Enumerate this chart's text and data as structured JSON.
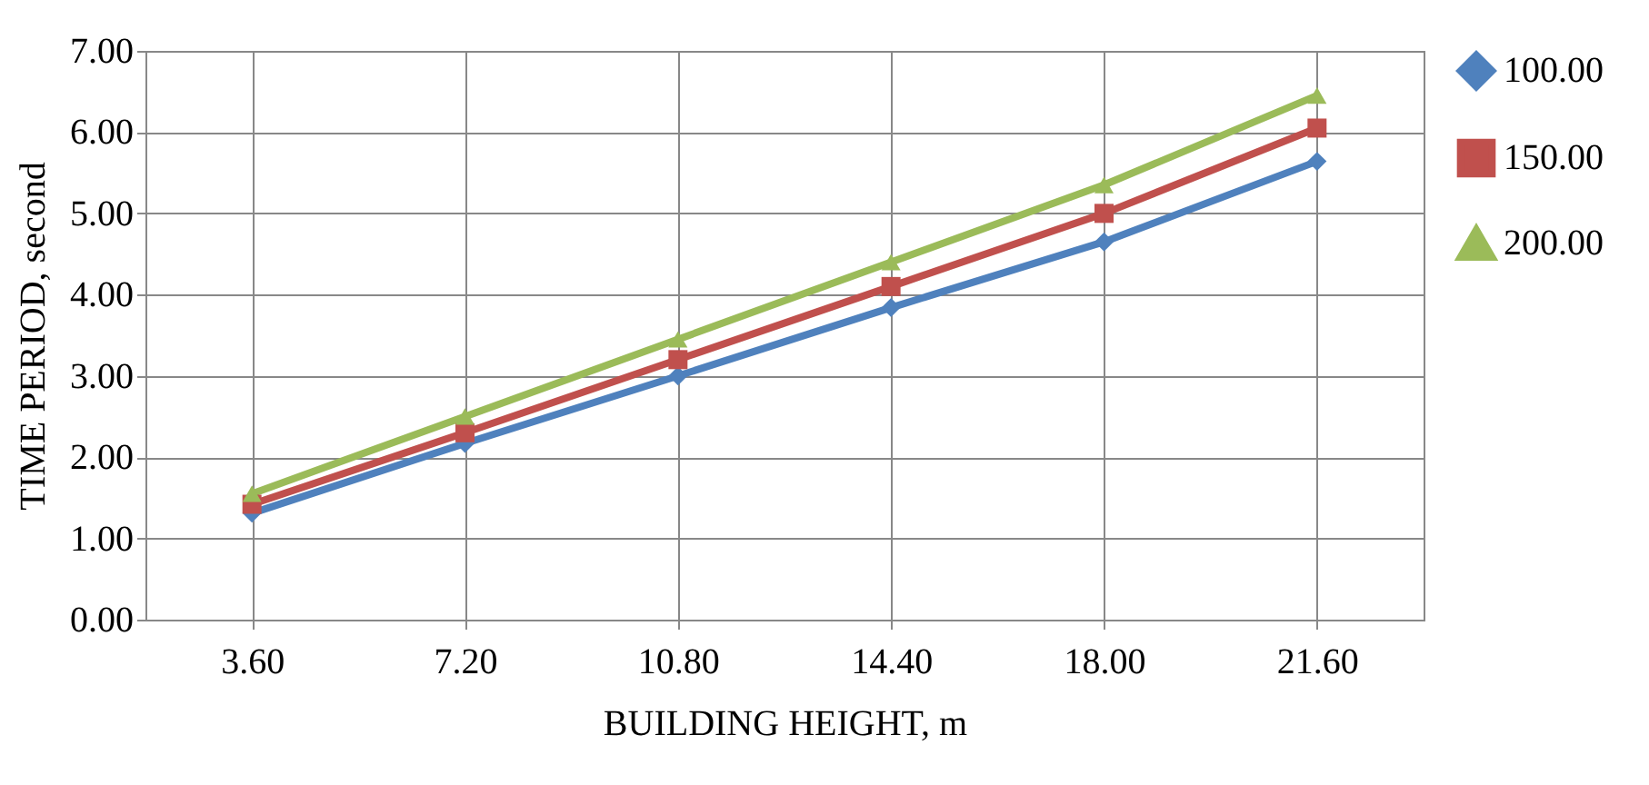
{
  "chart_data": {
    "type": "line",
    "xlabel": "BUILDING HEIGHT, m",
    "ylabel": "TIME PERIOD, second",
    "categories": [
      "3.60",
      "7.20",
      "10.80",
      "14.40",
      "18.00",
      "21.60"
    ],
    "series": [
      {
        "name": "100.00",
        "color": "#4f81bd",
        "marker": "diamond",
        "values": [
          1.31,
          2.17,
          3.0,
          3.84,
          4.65,
          5.64
        ]
      },
      {
        "name": "150.00",
        "color": "#c0504d",
        "marker": "square",
        "values": [
          1.42,
          2.3,
          3.2,
          4.1,
          5.0,
          6.05
        ]
      },
      {
        "name": "200.00",
        "color": "#9bbb59",
        "marker": "triangle",
        "values": [
          1.55,
          2.5,
          3.45,
          4.4,
          5.35,
          6.45
        ]
      }
    ],
    "ylim": [
      0,
      7
    ],
    "yticks": [
      {
        "value": 0,
        "label": "0.00"
      },
      {
        "value": 1,
        "label": "1.00"
      },
      {
        "value": 2,
        "label": "2.00"
      },
      {
        "value": 3,
        "label": "3.00"
      },
      {
        "value": 4,
        "label": "4.00"
      },
      {
        "value": 5,
        "label": "5.00"
      },
      {
        "value": 6,
        "label": "6.00"
      },
      {
        "value": 7,
        "label": "7.00"
      }
    ],
    "grid": true,
    "legend": "right",
    "line_style": "solid"
  }
}
